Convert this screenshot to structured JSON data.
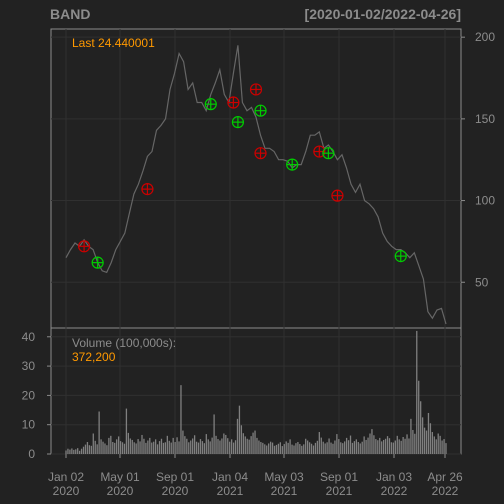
{
  "header": {
    "symbol": "BAND",
    "date_range": "[2020-01-02/2022-04-26]"
  },
  "colors": {
    "background": "#222222",
    "panel_border": "#8c8c8c",
    "grid": "#303030",
    "price_line": "#666666",
    "volume_bar": "#808080",
    "text": "#8c8c8c",
    "highlight": "#ff9900",
    "buy_marker": "#00cc00",
    "sell_marker": "#cc0000"
  },
  "chart_data": [
    {
      "type": "line",
      "panel": "price",
      "last_label": "Last 24.440001",
      "ylim": [
        22,
        205
      ],
      "y_ticks": [
        50,
        100,
        150,
        200
      ],
      "y_tick_labels": [
        "50",
        "100",
        "150",
        "200"
      ],
      "series": [
        {
          "values": [
            65,
            70,
            74,
            72,
            76,
            72,
            70,
            62,
            57,
            56,
            62,
            70,
            75,
            80,
            92,
            104,
            110,
            118,
            127,
            130,
            143,
            146,
            150,
            168,
            178,
            190,
            185,
            168,
            172,
            160,
            160,
            155,
            165,
            172,
            180,
            165,
            160,
            178,
            195,
            160,
            155,
            157,
            151,
            140,
            132,
            132,
            130,
            125,
            125,
            124,
            120,
            122,
            122,
            130,
            140,
            140,
            142,
            132,
            134,
            130,
            125,
            128,
            120,
            110,
            105,
            110,
            100,
            98,
            95,
            90,
            80,
            75,
            72,
            70,
            70,
            68,
            65,
            68,
            60,
            52,
            32,
            28,
            33,
            34,
            24.44
          ]
        }
      ],
      "markers": [
        {
          "kind": "sell",
          "x_index": 4,
          "y": 72
        },
        {
          "kind": "buy",
          "x_index": 7,
          "y": 62
        },
        {
          "kind": "sell",
          "x_index": 18,
          "y": 107
        },
        {
          "kind": "buy",
          "x_index": 32,
          "y": 159
        },
        {
          "kind": "sell",
          "x_index": 37,
          "y": 160
        },
        {
          "kind": "buy",
          "x_index": 38,
          "y": 148
        },
        {
          "kind": "sell",
          "x_index": 42,
          "y": 168
        },
        {
          "kind": "buy",
          "x_index": 43,
          "y": 155
        },
        {
          "kind": "sell",
          "x_index": 43,
          "y": 129
        },
        {
          "kind": "buy",
          "x_index": 50,
          "y": 122
        },
        {
          "kind": "sell",
          "x_index": 56,
          "y": 130
        },
        {
          "kind": "buy",
          "x_index": 58,
          "y": 129
        },
        {
          "kind": "sell",
          "x_index": 60,
          "y": 103
        },
        {
          "kind": "buy",
          "x_index": 74,
          "y": 66
        }
      ]
    },
    {
      "type": "bar",
      "panel": "volume",
      "title": "Volume (100,000s):",
      "last_value": "372,200",
      "ylim": [
        0,
        43
      ],
      "y_ticks": [
        0,
        10,
        20,
        30,
        40
      ],
      "y_tick_labels": [
        "0",
        "10",
        "20",
        "30",
        "40"
      ],
      "values": [
        1.2,
        1.8,
        1.5,
        1.9,
        1.4,
        1.6,
        2.0,
        1.1,
        1.8,
        2.5,
        3.2,
        4.1,
        3.0,
        2.8,
        7.0,
        4.5,
        3.3,
        14.5,
        5.0,
        4.2,
        3.6,
        3.0,
        5.5,
        6.2,
        4.1,
        3.8,
        5.0,
        6.0,
        4.4,
        4.0,
        3.5,
        15.5,
        7.2,
        5.3,
        4.8,
        4.0,
        3.6,
        5.1,
        4.3,
        6.5,
        5.2,
        3.8,
        4.6,
        5.5,
        3.9,
        4.2,
        5.0,
        3.3,
        4.4,
        5.2,
        3.8,
        4.0,
        6.2,
        4.5,
        3.9,
        5.5,
        4.1,
        5.7,
        4.3,
        23.5,
        8.0,
        6.1,
        5.2,
        4.0,
        4.6,
        5.3,
        6.4,
        4.2,
        3.9,
        5.1,
        4.4,
        3.7,
        6.8,
        5.0,
        4.3,
        5.6,
        13.5,
        6.2,
        5.1,
        4.6,
        5.3,
        7.0,
        6.5,
        5.4,
        4.2,
        5.0,
        3.9,
        4.7,
        12.0,
        16.5,
        9.8,
        7.1,
        6.0,
        5.2,
        4.9,
        6.1,
        7.3,
        8.0,
        5.5,
        4.6,
        4.1,
        3.8,
        3.3,
        2.9,
        3.6,
        4.2,
        3.9,
        2.8,
        3.1,
        3.5,
        4.0,
        2.7,
        3.4,
        4.3,
        3.8,
        5.0,
        3.2,
        2.9,
        3.7,
        4.1,
        3.4,
        2.8,
        3.3,
        5.2,
        4.6,
        4.0,
        3.5,
        2.9,
        3.8,
        4.5,
        7.5,
        5.6,
        4.2,
        3.6,
        4.0,
        5.3,
        3.9,
        3.5,
        4.6,
        6.8,
        5.1,
        4.0,
        3.7,
        4.3,
        5.5,
        4.7,
        6.3,
        3.8,
        4.4,
        5.0,
        4.1,
        3.6,
        4.2,
        6.0,
        4.8,
        5.6,
        7.0,
        8.5,
        6.4,
        5.1,
        4.7,
        5.5,
        4.3,
        4.8,
        5.2,
        6.1,
        5.4,
        4.0,
        3.9,
        4.6,
        6.2,
        5.0,
        4.5,
        5.8,
        5.2,
        6.7,
        5.3,
        12.0,
        8.2,
        6.9,
        42.0,
        25.0,
        18.0,
        12.5,
        9.0,
        8.0,
        14.0,
        10.5,
        7.5,
        6.0,
        5.0,
        7.0,
        6.2,
        4.6,
        5.1,
        3.72
      ]
    }
  ],
  "x_axis": {
    "labels": [
      {
        "line1": "Jan 02",
        "line2": "2020"
      },
      {
        "line1": "May 01",
        "line2": "2020"
      },
      {
        "line1": "Sep 01",
        "line2": "2020"
      },
      {
        "line1": "Jan 04",
        "line2": "2021"
      },
      {
        "line1": "May 03",
        "line2": "2021"
      },
      {
        "line1": "Sep 01",
        "line2": "2021"
      },
      {
        "line1": "Jan 03",
        "line2": "2022"
      },
      {
        "line1": "Apr 26",
        "line2": "2022"
      }
    ]
  }
}
